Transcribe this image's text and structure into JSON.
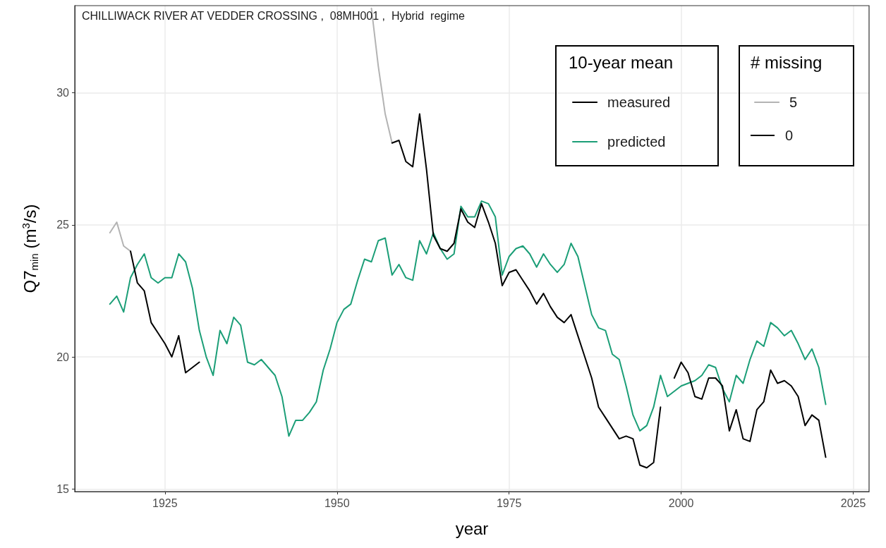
{
  "chart_data": {
    "type": "line",
    "title": "CHILLIWACK RIVER AT VEDDER CROSSING ,  08MH001 ,  Hybrid  regime",
    "xlabel": "year",
    "ylabel": "Q7$_{min}$ (m$^{3}$/s)",
    "legend_title": "10-year mean",
    "annotations": [
      "# missing",
      "0"
    ],
    "x": [
      1917,
      1918,
      1919,
      1920,
      1921,
      1922,
      1923,
      1924,
      1925,
      1926,
      1927,
      1928,
      1929,
      1930,
      1931,
      1932,
      1933,
      1934,
      1935,
      1936,
      1937,
      1938,
      1939,
      1940,
      1941,
      1942,
      1943,
      1944,
      1945,
      1946,
      1947,
      1948,
      1949,
      1950,
      1951,
      1952,
      1953,
      1954,
      1955,
      1956,
      1957,
      1958,
      1959,
      1960,
      1961,
      1962,
      1963,
      1964,
      1965,
      1966,
      1967,
      1968,
      1969,
      1970,
      1971,
      1972,
      1973,
      1974,
      1975,
      1976,
      1977,
      1978,
      1979,
      1980,
      1981,
      1982,
      1983,
      1984,
      1985,
      1986,
      1987,
      1988,
      1989,
      1990,
      1991,
      1992,
      1993,
      1994,
      1995,
      1996,
      1997,
      1998,
      1999,
      2000,
      2001,
      2002,
      2003,
      2004,
      2005,
      2006,
      2007,
      2008,
      2009,
      2010,
      2011,
      2012,
      2013,
      2014,
      2015,
      2016,
      2017,
      2018,
      2019,
      2020,
      2021
    ],
    "series": [
      {
        "name": "measured",
        "color": "#000000",
        "values": [
          null,
          null,
          null,
          24.0,
          22.8,
          22.5,
          21.3,
          20.9,
          20.5,
          20.0,
          20.8,
          19.4,
          19.6,
          19.8,
          null,
          null,
          null,
          null,
          null,
          null,
          null,
          null,
          null,
          null,
          null,
          null,
          null,
          null,
          null,
          null,
          null,
          null,
          null,
          null,
          null,
          null,
          null,
          null,
          null,
          null,
          null,
          28.1,
          28.2,
          27.4,
          27.2,
          29.2,
          27.1,
          24.6,
          24.1,
          24.0,
          24.3,
          25.6,
          25.1,
          24.9,
          25.8,
          25.1,
          24.3,
          22.7,
          23.2,
          23.3,
          22.9,
          22.5,
          22.0,
          22.4,
          21.9,
          21.5,
          21.3,
          21.6,
          20.8,
          20.0,
          19.2,
          18.1,
          17.7,
          17.3,
          16.9,
          17.0,
          16.9,
          15.9,
          15.8,
          16.0,
          18.1,
          null,
          19.2,
          19.8,
          19.4,
          18.5,
          18.4,
          19.2,
          19.2,
          18.9,
          17.2,
          18.0,
          16.9,
          16.8,
          18.0,
          18.3,
          19.5,
          19.0,
          19.1,
          18.9,
          18.5,
          17.4,
          17.8,
          17.6,
          16.2
        ]
      },
      {
        "name": "predicted",
        "color": "#1b9e77",
        "values": [
          22.0,
          22.3,
          21.7,
          23.0,
          23.5,
          23.9,
          23.0,
          22.8,
          23.0,
          23.0,
          23.9,
          23.6,
          22.6,
          21.0,
          20.0,
          19.3,
          21.0,
          20.5,
          21.5,
          21.2,
          19.8,
          19.7,
          19.9,
          19.6,
          19.3,
          18.5,
          17.0,
          17.6,
          17.6,
          17.9,
          18.3,
          19.5,
          20.3,
          21.3,
          21.8,
          22.0,
          22.9,
          23.7,
          23.6,
          24.4,
          24.5,
          23.1,
          23.5,
          23.0,
          22.9,
          24.4,
          23.9,
          24.7,
          24.1,
          23.7,
          23.9,
          25.7,
          25.3,
          25.3,
          25.9,
          25.8,
          25.3,
          23.1,
          23.8,
          24.1,
          24.2,
          23.9,
          23.4,
          23.9,
          23.5,
          23.2,
          23.5,
          24.3,
          23.8,
          22.7,
          21.6,
          21.1,
          21.0,
          20.1,
          19.9,
          18.9,
          17.8,
          17.2,
          17.4,
          18.1,
          19.3,
          18.5,
          18.7,
          18.9,
          19.0,
          19.1,
          19.3,
          19.7,
          19.6,
          18.8,
          18.3,
          19.3,
          19.0,
          19.9,
          20.6,
          20.4,
          21.3,
          21.1,
          20.8,
          21.0,
          20.5,
          19.9,
          20.3,
          19.6,
          18.2
        ]
      },
      {
        "name": "5",
        "color": "#b3b3b3",
        "values": [
          24.7,
          25.1,
          24.2,
          24.0,
          null,
          null,
          null,
          null,
          null,
          null,
          null,
          null,
          null,
          null,
          null,
          null,
          null,
          null,
          null,
          null,
          null,
          null,
          null,
          null,
          null,
          null,
          null,
          null,
          null,
          null,
          null,
          null,
          null,
          null,
          null,
          null,
          null,
          null,
          33.2,
          31.0,
          29.2,
          28.1,
          null,
          null,
          null,
          null,
          null,
          null,
          null,
          null,
          null,
          null,
          null,
          null,
          null,
          null,
          null,
          null,
          null,
          null,
          null,
          null,
          null,
          null,
          null,
          null,
          null,
          null,
          null,
          null,
          null,
          null,
          null,
          null,
          null,
          null,
          null,
          null,
          null,
          null,
          null,
          null,
          null,
          null,
          null,
          null,
          null,
          null,
          null,
          null,
          null,
          null,
          null,
          null,
          null,
          null,
          null,
          null,
          null,
          null,
          null,
          null,
          null,
          null,
          null
        ]
      }
    ],
    "xlim": [
      1911.9,
      2027.3
    ],
    "xticks": [
      1925,
      1950,
      1975,
      2000,
      2025
    ],
    "ylim": [
      14.9,
      33.3
    ],
    "yticks": [
      15,
      20,
      25,
      30
    ],
    "grid": true,
    "legend": "top right",
    "marker": "none",
    "line_style": "solid"
  }
}
